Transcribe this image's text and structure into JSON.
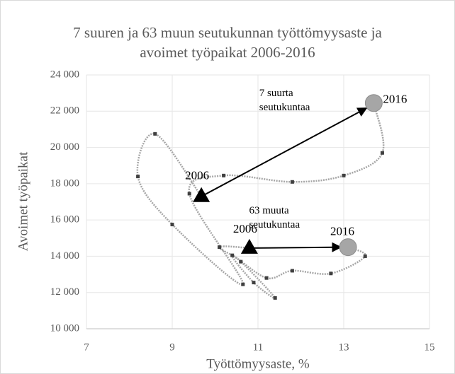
{
  "chart_data": {
    "type": "scatter",
    "title": "7 suuren ja 63 muun seutukunnan työttömyysaste ja avoimet työpaikat 2006-2016",
    "xlabel": "Työttömyysaste, %",
    "ylabel": "Avoimet työpaikat",
    "xlim": [
      7,
      15
    ],
    "xticks": [
      7,
      9,
      11,
      13,
      15
    ],
    "ylim": [
      10000,
      24000
    ],
    "yticks": [
      {
        "value": 10000,
        "label": "10 000"
      },
      {
        "value": 12000,
        "label": "12 000"
      },
      {
        "value": 14000,
        "label": "14 000"
      },
      {
        "value": 16000,
        "label": "16 000"
      },
      {
        "value": 18000,
        "label": "18 000"
      },
      {
        "value": 20000,
        "label": "20 000"
      },
      {
        "value": 22000,
        "label": "22 000"
      },
      {
        "value": 24000,
        "label": "24 000"
      }
    ],
    "grid": true,
    "series": [
      {
        "name": "7 suurta seutukuntaa",
        "color": "#a6a6a6",
        "start_label": "2006",
        "end_label": "2016",
        "x": [
          9.68,
          8.6,
          8.2,
          9.0,
          10.65,
          9.4,
          10.2,
          11.8,
          13.0,
          13.9,
          13.7
        ],
        "values": [
          17300,
          20750,
          18400,
          15750,
          12450,
          17450,
          18450,
          18100,
          18450,
          19700,
          22450
        ]
      },
      {
        "name": "63 muuta seutukuntaa",
        "color": "#a6a6a6",
        "start_label": "2006",
        "end_label": "2016",
        "x": [
          10.8,
          10.1,
          10.6,
          11.4,
          10.9,
          10.4,
          11.2,
          11.8,
          12.7,
          13.5,
          13.1
        ],
        "values": [
          14450,
          14500,
          13700,
          11700,
          12550,
          14050,
          12800,
          13200,
          13050,
          14000,
          14500
        ]
      }
    ]
  }
}
